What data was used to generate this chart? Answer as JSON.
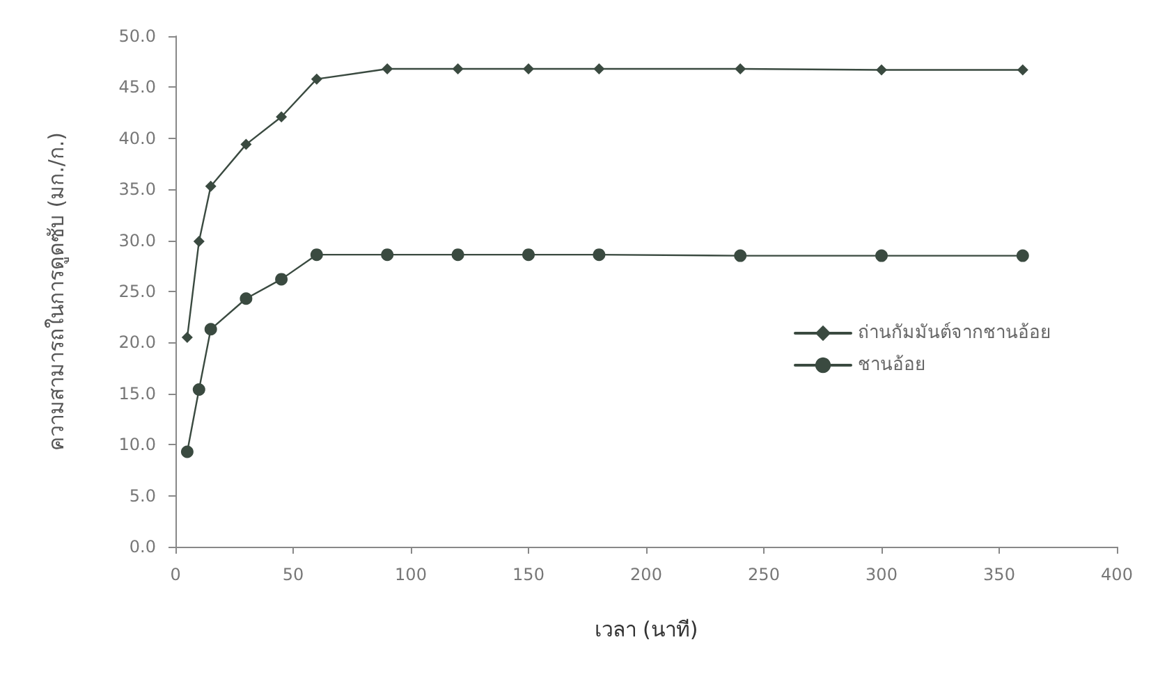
{
  "chart_data": {
    "type": "line",
    "xlabel": "เวลา (นาที)",
    "ylabel": "ความสามารถในการดูดซับ (มก./ก.)",
    "xlim": [
      0,
      400
    ],
    "xticks": [
      0,
      50,
      100,
      150,
      200,
      250,
      300,
      350,
      400
    ],
    "ylim": [
      0,
      50
    ],
    "yticks": [
      {
        "value": 0,
        "label": "0.0"
      },
      {
        "value": 5,
        "label": "5.0"
      },
      {
        "value": 10,
        "label": "10.0"
      },
      {
        "value": 15,
        "label": "15.0"
      },
      {
        "value": 20,
        "label": "20.0"
      },
      {
        "value": 25,
        "label": "25.0"
      },
      {
        "value": 30,
        "label": "30.0"
      },
      {
        "value": 35,
        "label": "35.0"
      },
      {
        "value": 40,
        "label": "40.0"
      },
      {
        "value": 45,
        "label": "45.0"
      },
      {
        "value": 50,
        "label": "50.0"
      }
    ],
    "x": [
      5,
      10,
      15,
      30,
      45,
      60,
      90,
      120,
      150,
      180,
      240,
      300,
      360
    ],
    "grid": false,
    "legend": "right",
    "line_style": "solid",
    "series": [
      {
        "name": "ถ่านกัมมันต์จากชานอ้อย",
        "color": "#3a4a40",
        "marker": "diamond",
        "values": [
          20.5,
          29.9,
          35.3,
          39.4,
          42.1,
          45.8,
          46.8,
          46.8,
          46.8,
          46.8,
          46.8,
          46.7,
          46.7
        ]
      },
      {
        "name": "ชานอ้อย",
        "color": "#3a4a40",
        "marker": "circle",
        "values": [
          9.3,
          15.4,
          21.3,
          24.3,
          26.2,
          28.6,
          28.6,
          28.6,
          28.6,
          28.6,
          28.5,
          28.5,
          28.5
        ]
      }
    ]
  }
}
